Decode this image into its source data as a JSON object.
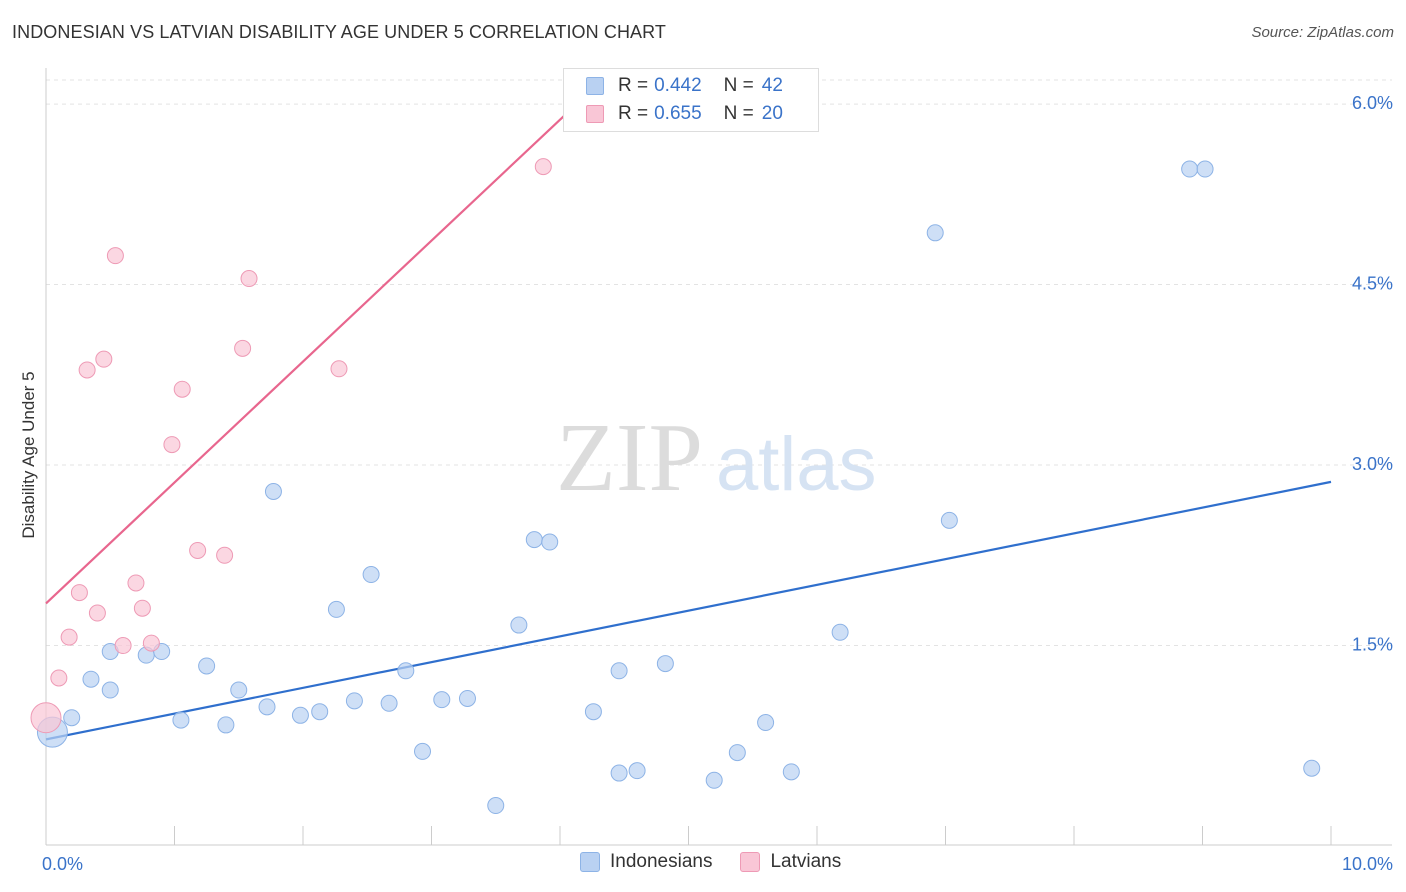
{
  "title": "INDONESIAN VS LATVIAN DISABILITY AGE UNDER 5 CORRELATION CHART",
  "source": "Source: ZipAtlas.com",
  "watermark": {
    "zip": "ZIP",
    "atlas": "atlas"
  },
  "colors": {
    "blue_fill": "#b9d1f2",
    "blue_stroke": "#8db3e6",
    "blue_line": "#2f6fcd",
    "pink_fill": "#f9c6d6",
    "pink_stroke": "#ee9ab5",
    "pink_line": "#e8668e",
    "tick_text": "#3a73c9",
    "grid": "#e3e3e3",
    "axis_text": "#333333"
  },
  "legend": {
    "rows": [
      {
        "r_label": "R =",
        "r_value": "0.442",
        "n_label": "N =",
        "n_value": "42",
        "series": "Indonesians"
      },
      {
        "r_label": "R =",
        "r_value": "0.655",
        "n_label": "N =",
        "n_value": "20",
        "series": "Latvians"
      }
    ],
    "bottom": [
      "Indonesians",
      "Latvians"
    ]
  },
  "chart_data": {
    "type": "scatter",
    "xlabel": "",
    "ylabel": "Disability Age Under 5",
    "xlim": [
      0,
      10
    ],
    "ylim": [
      0,
      6.2
    ],
    "x_tick_labels": [
      {
        "value": 0,
        "label": "0.0%"
      },
      {
        "value": 10,
        "label": "10.0%"
      }
    ],
    "y_tick_labels": [
      {
        "value": 1.5,
        "label": "1.5%"
      },
      {
        "value": 3.0,
        "label": "3.0%"
      },
      {
        "value": 4.5,
        "label": "4.5%"
      },
      {
        "value": 6.0,
        "label": "6.0%"
      }
    ],
    "x_minor_ticks": [
      0,
      1,
      2,
      3,
      4,
      5,
      6,
      7,
      8,
      9,
      10
    ],
    "series": [
      {
        "name": "Indonesians",
        "r": 0.442,
        "n": 42,
        "trend": {
          "x": [
            0,
            10
          ],
          "y": [
            0.72,
            2.86
          ]
        },
        "points": [
          {
            "x": 0.05,
            "y": 0.78,
            "size": "large"
          },
          {
            "x": 0.2,
            "y": 0.9
          },
          {
            "x": 0.35,
            "y": 1.22
          },
          {
            "x": 0.5,
            "y": 1.13
          },
          {
            "x": 0.5,
            "y": 1.45
          },
          {
            "x": 0.78,
            "y": 1.42
          },
          {
            "x": 0.9,
            "y": 1.45
          },
          {
            "x": 1.05,
            "y": 0.88
          },
          {
            "x": 1.25,
            "y": 1.33
          },
          {
            "x": 1.4,
            "y": 0.84
          },
          {
            "x": 1.5,
            "y": 1.13
          },
          {
            "x": 1.72,
            "y": 0.99
          },
          {
            "x": 1.77,
            "y": 2.78
          },
          {
            "x": 1.98,
            "y": 0.92
          },
          {
            "x": 2.13,
            "y": 0.95
          },
          {
            "x": 2.26,
            "y": 1.8
          },
          {
            "x": 2.4,
            "y": 1.04
          },
          {
            "x": 2.53,
            "y": 2.09
          },
          {
            "x": 2.67,
            "y": 1.02
          },
          {
            "x": 2.8,
            "y": 1.29
          },
          {
            "x": 2.93,
            "y": 0.62
          },
          {
            "x": 3.08,
            "y": 1.05
          },
          {
            "x": 3.28,
            "y": 1.06
          },
          {
            "x": 3.5,
            "y": 0.17
          },
          {
            "x": 3.68,
            "y": 1.67
          },
          {
            "x": 3.8,
            "y": 2.38
          },
          {
            "x": 3.92,
            "y": 2.36
          },
          {
            "x": 4.26,
            "y": 0.95
          },
          {
            "x": 4.46,
            "y": 0.44
          },
          {
            "x": 4.46,
            "y": 1.29
          },
          {
            "x": 4.6,
            "y": 0.46
          },
          {
            "x": 4.82,
            "y": 1.35
          },
          {
            "x": 5.2,
            "y": 0.38
          },
          {
            "x": 5.38,
            "y": 0.61
          },
          {
            "x": 5.6,
            "y": 0.86
          },
          {
            "x": 5.8,
            "y": 0.45
          },
          {
            "x": 6.18,
            "y": 1.61
          },
          {
            "x": 6.92,
            "y": 4.93
          },
          {
            "x": 7.03,
            "y": 2.54
          },
          {
            "x": 8.9,
            "y": 5.46
          },
          {
            "x": 9.02,
            "y": 5.46
          },
          {
            "x": 9.85,
            "y": 0.48
          }
        ]
      },
      {
        "name": "Latvians",
        "r": 0.655,
        "n": 20,
        "trend": {
          "x": [
            0,
            4.05
          ],
          "y": [
            1.85,
            5.92
          ]
        },
        "points": [
          {
            "x": 0.0,
            "y": 0.9,
            "size": "large"
          },
          {
            "x": 0.1,
            "y": 1.23
          },
          {
            "x": 0.18,
            "y": 1.57
          },
          {
            "x": 0.26,
            "y": 1.94
          },
          {
            "x": 0.32,
            "y": 3.79
          },
          {
            "x": 0.4,
            "y": 1.77
          },
          {
            "x": 0.45,
            "y": 3.88
          },
          {
            "x": 0.54,
            "y": 4.74
          },
          {
            "x": 0.6,
            "y": 1.5
          },
          {
            "x": 0.7,
            "y": 2.02
          },
          {
            "x": 0.75,
            "y": 1.81
          },
          {
            "x": 0.82,
            "y": 1.52
          },
          {
            "x": 0.98,
            "y": 3.17
          },
          {
            "x": 1.06,
            "y": 3.63
          },
          {
            "x": 1.18,
            "y": 2.29
          },
          {
            "x": 1.39,
            "y": 2.25
          },
          {
            "x": 1.53,
            "y": 3.97
          },
          {
            "x": 1.58,
            "y": 4.55
          },
          {
            "x": 2.28,
            "y": 3.8
          },
          {
            "x": 3.87,
            "y": 5.48
          }
        ]
      }
    ]
  }
}
